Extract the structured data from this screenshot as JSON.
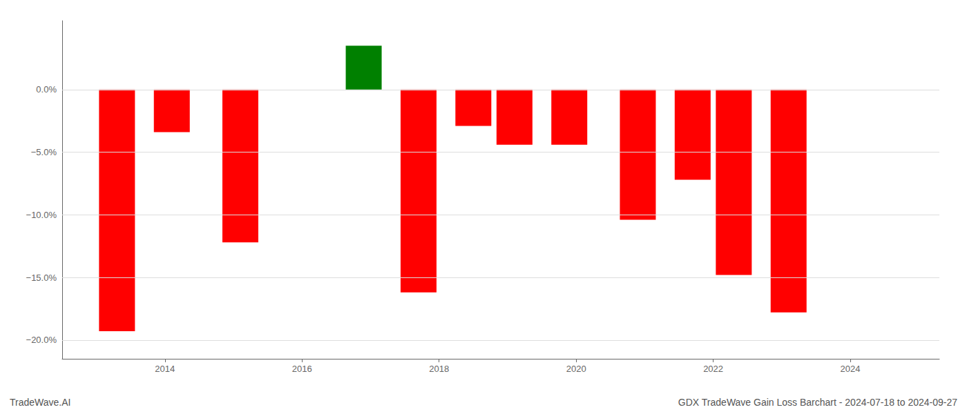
{
  "chart_data": {
    "type": "bar",
    "x": [
      2013.3,
      2014.1,
      2015.1,
      2016.9,
      2017.7,
      2018.5,
      2019.1,
      2019.9,
      2020.9,
      2021.7,
      2022.3,
      2023.1
    ],
    "values": [
      -0.193,
      -0.034,
      -0.122,
      0.035,
      -0.162,
      -0.029,
      -0.044,
      -0.044,
      -0.104,
      -0.072,
      -0.148,
      -0.178
    ],
    "colors": [
      "#FF0000",
      "#FF0000",
      "#FF0000",
      "#008000",
      "#FF0000",
      "#FF0000",
      "#FF0000",
      "#FF0000",
      "#FF0000",
      "#FF0000",
      "#FF0000",
      "#FF0000"
    ],
    "xlim": [
      2012.5,
      2025.3
    ],
    "xticks": [
      2014,
      2016,
      2018,
      2020,
      2022,
      2024
    ],
    "ylim": [
      -0.215,
      0.055
    ],
    "yticks": [
      {
        "value": 0.0,
        "label": "0.0%"
      },
      {
        "value": -0.05,
        "label": "−5.0%"
      },
      {
        "value": -0.1,
        "label": "−10.0%"
      },
      {
        "value": -0.15,
        "label": "−15.0%"
      },
      {
        "value": -0.2,
        "label": "−20.0%"
      }
    ],
    "grid": true,
    "annotations": [
      "TradeWave.AI",
      "GDX TradeWave Gain Loss Barchart - 2024-07-18 to 2024-09-27"
    ]
  }
}
